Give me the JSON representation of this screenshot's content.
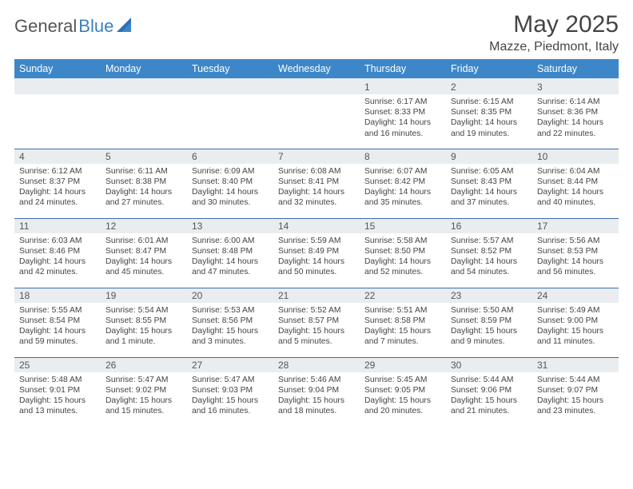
{
  "brand": {
    "part1": "General",
    "part2": "Blue"
  },
  "title": "May 2025",
  "location": "Mazze, Piedmont, Italy",
  "colors": {
    "header_bg": "#3d87c9",
    "header_text": "#ffffff",
    "daynum_bg": "#e9edf0",
    "row_border": "#3d6fa5",
    "brand_blue": "#3d7fbf",
    "text": "#444444"
  },
  "day_headers": [
    "Sunday",
    "Monday",
    "Tuesday",
    "Wednesday",
    "Thursday",
    "Friday",
    "Saturday"
  ],
  "weeks": [
    [
      {
        "n": "",
        "lines": []
      },
      {
        "n": "",
        "lines": []
      },
      {
        "n": "",
        "lines": []
      },
      {
        "n": "",
        "lines": []
      },
      {
        "n": "1",
        "lines": [
          "Sunrise: 6:17 AM",
          "Sunset: 8:33 PM",
          "Daylight: 14 hours",
          "and 16 minutes."
        ]
      },
      {
        "n": "2",
        "lines": [
          "Sunrise: 6:15 AM",
          "Sunset: 8:35 PM",
          "Daylight: 14 hours",
          "and 19 minutes."
        ]
      },
      {
        "n": "3",
        "lines": [
          "Sunrise: 6:14 AM",
          "Sunset: 8:36 PM",
          "Daylight: 14 hours",
          "and 22 minutes."
        ]
      }
    ],
    [
      {
        "n": "4",
        "lines": [
          "Sunrise: 6:12 AM",
          "Sunset: 8:37 PM",
          "Daylight: 14 hours",
          "and 24 minutes."
        ]
      },
      {
        "n": "5",
        "lines": [
          "Sunrise: 6:11 AM",
          "Sunset: 8:38 PM",
          "Daylight: 14 hours",
          "and 27 minutes."
        ]
      },
      {
        "n": "6",
        "lines": [
          "Sunrise: 6:09 AM",
          "Sunset: 8:40 PM",
          "Daylight: 14 hours",
          "and 30 minutes."
        ]
      },
      {
        "n": "7",
        "lines": [
          "Sunrise: 6:08 AM",
          "Sunset: 8:41 PM",
          "Daylight: 14 hours",
          "and 32 minutes."
        ]
      },
      {
        "n": "8",
        "lines": [
          "Sunrise: 6:07 AM",
          "Sunset: 8:42 PM",
          "Daylight: 14 hours",
          "and 35 minutes."
        ]
      },
      {
        "n": "9",
        "lines": [
          "Sunrise: 6:05 AM",
          "Sunset: 8:43 PM",
          "Daylight: 14 hours",
          "and 37 minutes."
        ]
      },
      {
        "n": "10",
        "lines": [
          "Sunrise: 6:04 AM",
          "Sunset: 8:44 PM",
          "Daylight: 14 hours",
          "and 40 minutes."
        ]
      }
    ],
    [
      {
        "n": "11",
        "lines": [
          "Sunrise: 6:03 AM",
          "Sunset: 8:46 PM",
          "Daylight: 14 hours",
          "and 42 minutes."
        ]
      },
      {
        "n": "12",
        "lines": [
          "Sunrise: 6:01 AM",
          "Sunset: 8:47 PM",
          "Daylight: 14 hours",
          "and 45 minutes."
        ]
      },
      {
        "n": "13",
        "lines": [
          "Sunrise: 6:00 AM",
          "Sunset: 8:48 PM",
          "Daylight: 14 hours",
          "and 47 minutes."
        ]
      },
      {
        "n": "14",
        "lines": [
          "Sunrise: 5:59 AM",
          "Sunset: 8:49 PM",
          "Daylight: 14 hours",
          "and 50 minutes."
        ]
      },
      {
        "n": "15",
        "lines": [
          "Sunrise: 5:58 AM",
          "Sunset: 8:50 PM",
          "Daylight: 14 hours",
          "and 52 minutes."
        ]
      },
      {
        "n": "16",
        "lines": [
          "Sunrise: 5:57 AM",
          "Sunset: 8:52 PM",
          "Daylight: 14 hours",
          "and 54 minutes."
        ]
      },
      {
        "n": "17",
        "lines": [
          "Sunrise: 5:56 AM",
          "Sunset: 8:53 PM",
          "Daylight: 14 hours",
          "and 56 minutes."
        ]
      }
    ],
    [
      {
        "n": "18",
        "lines": [
          "Sunrise: 5:55 AM",
          "Sunset: 8:54 PM",
          "Daylight: 14 hours",
          "and 59 minutes."
        ]
      },
      {
        "n": "19",
        "lines": [
          "Sunrise: 5:54 AM",
          "Sunset: 8:55 PM",
          "Daylight: 15 hours",
          "and 1 minute."
        ]
      },
      {
        "n": "20",
        "lines": [
          "Sunrise: 5:53 AM",
          "Sunset: 8:56 PM",
          "Daylight: 15 hours",
          "and 3 minutes."
        ]
      },
      {
        "n": "21",
        "lines": [
          "Sunrise: 5:52 AM",
          "Sunset: 8:57 PM",
          "Daylight: 15 hours",
          "and 5 minutes."
        ]
      },
      {
        "n": "22",
        "lines": [
          "Sunrise: 5:51 AM",
          "Sunset: 8:58 PM",
          "Daylight: 15 hours",
          "and 7 minutes."
        ]
      },
      {
        "n": "23",
        "lines": [
          "Sunrise: 5:50 AM",
          "Sunset: 8:59 PM",
          "Daylight: 15 hours",
          "and 9 minutes."
        ]
      },
      {
        "n": "24",
        "lines": [
          "Sunrise: 5:49 AM",
          "Sunset: 9:00 PM",
          "Daylight: 15 hours",
          "and 11 minutes."
        ]
      }
    ],
    [
      {
        "n": "25",
        "lines": [
          "Sunrise: 5:48 AM",
          "Sunset: 9:01 PM",
          "Daylight: 15 hours",
          "and 13 minutes."
        ]
      },
      {
        "n": "26",
        "lines": [
          "Sunrise: 5:47 AM",
          "Sunset: 9:02 PM",
          "Daylight: 15 hours",
          "and 15 minutes."
        ]
      },
      {
        "n": "27",
        "lines": [
          "Sunrise: 5:47 AM",
          "Sunset: 9:03 PM",
          "Daylight: 15 hours",
          "and 16 minutes."
        ]
      },
      {
        "n": "28",
        "lines": [
          "Sunrise: 5:46 AM",
          "Sunset: 9:04 PM",
          "Daylight: 15 hours",
          "and 18 minutes."
        ]
      },
      {
        "n": "29",
        "lines": [
          "Sunrise: 5:45 AM",
          "Sunset: 9:05 PM",
          "Daylight: 15 hours",
          "and 20 minutes."
        ]
      },
      {
        "n": "30",
        "lines": [
          "Sunrise: 5:44 AM",
          "Sunset: 9:06 PM",
          "Daylight: 15 hours",
          "and 21 minutes."
        ]
      },
      {
        "n": "31",
        "lines": [
          "Sunrise: 5:44 AM",
          "Sunset: 9:07 PM",
          "Daylight: 15 hours",
          "and 23 minutes."
        ]
      }
    ]
  ]
}
